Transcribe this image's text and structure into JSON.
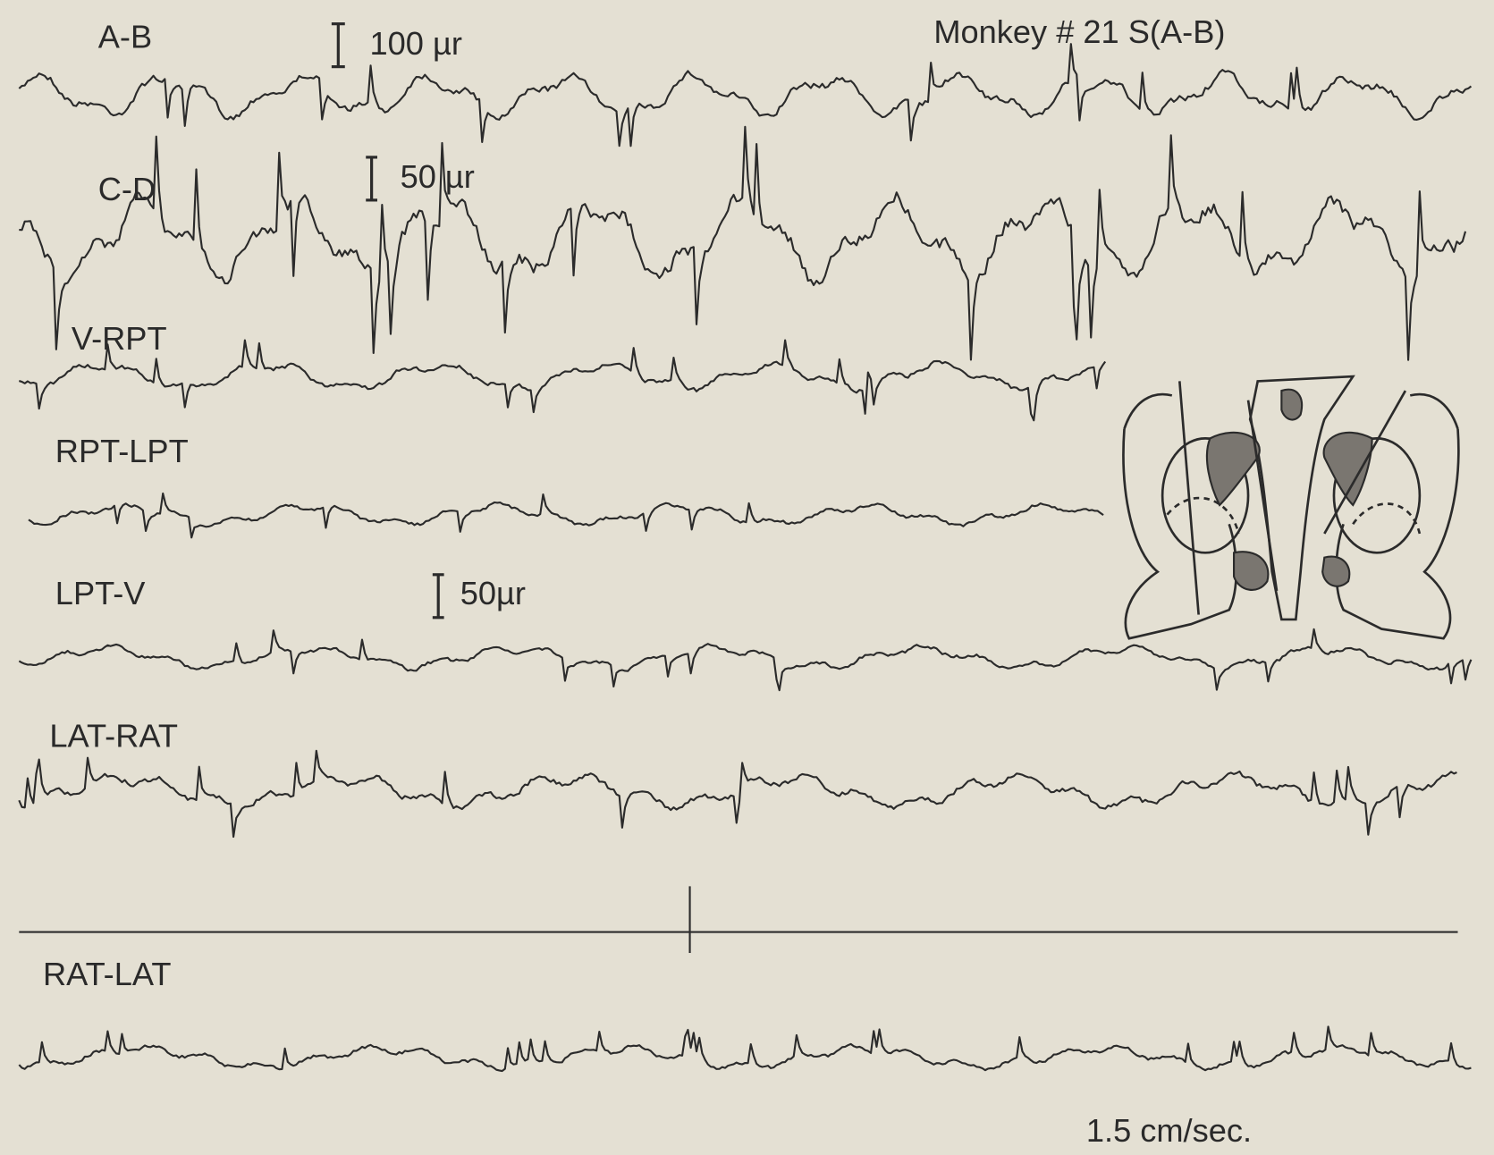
{
  "title": "Monkey # 21 S(A-B)",
  "traces": [
    {
      "label": "A-B"
    },
    {
      "label": "C-D"
    },
    {
      "label": "V-RPT"
    },
    {
      "label": "RPT-LPT"
    },
    {
      "label": "LPT-V"
    },
    {
      "label": "LAT-RAT"
    },
    {
      "label": "RAT-LAT"
    }
  ],
  "scale_bars": [
    "100 µr",
    "50 µr",
    "50µr"
  ],
  "speed": "1.5 cm/sec."
}
